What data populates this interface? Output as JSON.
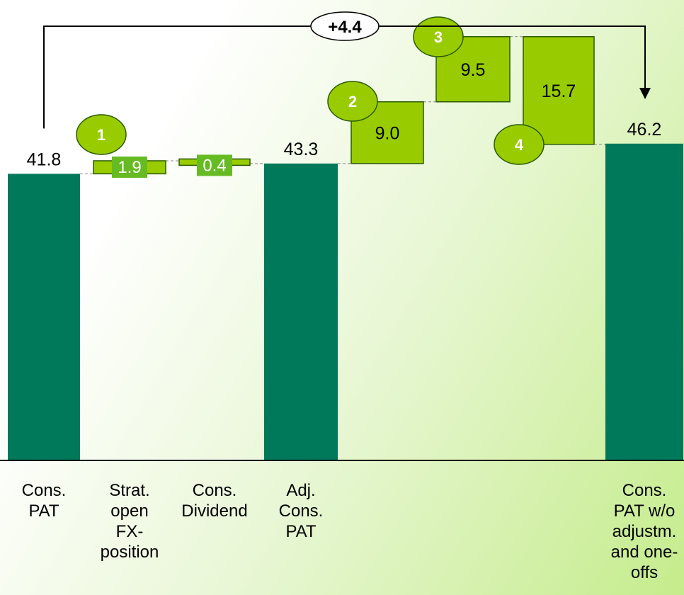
{
  "chart_data": {
    "type": "bar",
    "subtype": "waterfall",
    "categories": [
      "Cons. PAT",
      "Strat. open FX-position",
      "Cons. Dividend",
      "Adj. Cons. PAT",
      "",
      "",
      "",
      "Cons. PAT w/o adjustm. and one-offs"
    ],
    "category_lines": [
      [
        "Cons.",
        "PAT"
      ],
      [
        "Strat.",
        "open",
        "FX-",
        "position"
      ],
      [
        "Cons.",
        "Dividend"
      ],
      [
        "Adj.",
        "Cons.",
        "PAT"
      ],
      [],
      [],
      [],
      [
        "Cons.",
        "PAT w/o",
        "adjustm.",
        "and one-",
        "offs"
      ]
    ],
    "steps": [
      {
        "kind": "total",
        "value": 41.8,
        "label": "41.8"
      },
      {
        "kind": "delta",
        "value": 1.9,
        "label": "1.9",
        "marker": "1"
      },
      {
        "kind": "delta",
        "value": -0.4,
        "label": "0.4"
      },
      {
        "kind": "total",
        "value": 43.3,
        "label": "43.3"
      },
      {
        "kind": "delta",
        "value": 9.0,
        "label": "9.0",
        "marker": "2"
      },
      {
        "kind": "delta",
        "value": 9.5,
        "label": "9.5",
        "marker": "3"
      },
      {
        "kind": "delta",
        "value": -15.7,
        "label": "15.7",
        "marker": "4"
      },
      {
        "kind": "total",
        "value": 46.2,
        "label": "46.2"
      }
    ],
    "bridge": {
      "label": "+4.4",
      "from": "Cons. PAT",
      "to": "Cons. PAT w/o adjustm. and one-offs"
    },
    "ylim": [
      0,
      68
    ],
    "colors": {
      "total": "#00785a",
      "delta": "#99cc00",
      "small_label_bg": "#66bb22",
      "marker": "#99cc00",
      "line": "#000000"
    }
  }
}
